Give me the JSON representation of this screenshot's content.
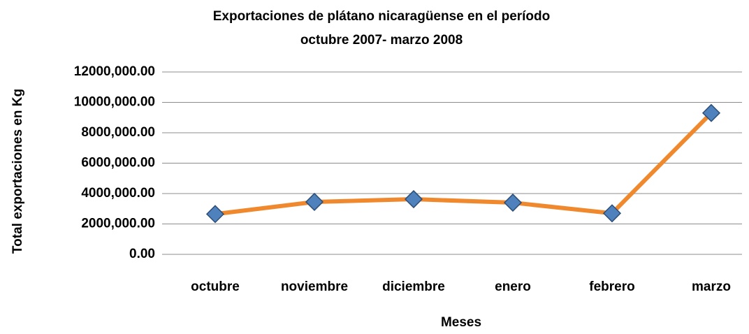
{
  "chart_data": {
    "type": "line",
    "title": [
      "Exportaciones de plátano  nicaragüense en el período",
      "octubre 2007- marzo 2008"
    ],
    "x_label": "Meses",
    "y_label": "Total exportaciones  en Kg",
    "categories": [
      "octubre",
      "noviembre",
      "diciembre",
      "enero",
      "febrero",
      "marzo"
    ],
    "series": [
      {
        "name": "Exportaciones",
        "color": "#f0892e",
        "marker_color": "#4f81bd",
        "values": [
          2650000,
          3450000,
          3630000,
          3400000,
          2700000,
          9300000
        ]
      }
    ],
    "ylim": [
      0,
      12000000
    ],
    "yticks": [
      {
        "value": 0,
        "label": "0.00"
      },
      {
        "value": 2000000,
        "label": "2000,000.00"
      },
      {
        "value": 4000000,
        "label": "4000,000.00"
      },
      {
        "value": 6000000,
        "label": "6000,000.00"
      },
      {
        "value": 8000000,
        "label": "8000,000.00"
      },
      {
        "value": 10000000,
        "label": "10000,000.00"
      },
      {
        "value": 12000000,
        "label": "12000,000.00"
      }
    ],
    "grid": true
  }
}
